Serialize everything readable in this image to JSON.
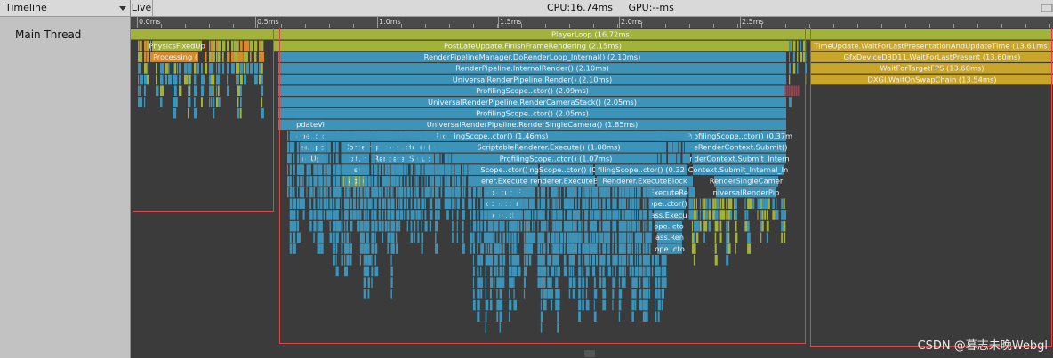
{
  "left_panel": {
    "dropdown_label": "Timeline",
    "thread_name": "Main Thread"
  },
  "toolbar": {
    "live_label": "Live",
    "cpu": "CPU:16.74ms",
    "gpu": "GPU:--ms"
  },
  "ruler": {
    "ticks": [
      "0.0ms",
      "0.5ms",
      "1.0ms",
      "1.5ms",
      "2.0ms",
      "2.5ms"
    ]
  },
  "samples": [
    {
      "label": "PlayerLoop (16.72ms)",
      "color": "#a3b33a"
    },
    {
      "label": "PostLateUpdate.FinishFrameRendering (2.15ms)",
      "color": "#a3b33a"
    },
    {
      "label": "RenderPipelineManager.DoRenderLoop_Internal() (2.10ms)",
      "color": "#3e93b8"
    },
    {
      "label": "RenderPipeline.InternalRender() (2.10ms)",
      "color": "#3e93b8"
    },
    {
      "label": "UniversalRenderPipeline.Render() (2.10ms)",
      "color": "#3e93b8"
    },
    {
      "label": "ProfilingScope..ctor() (2.09ms)",
      "color": "#3e93b8"
    },
    {
      "label": "UniversalRenderPipeline.RenderCameraStack() (2.05ms)",
      "color": "#3e93b8"
    },
    {
      "label": "ProfilingScope..ctor() (2.05ms)",
      "color": "#3e93b8"
    },
    {
      "label": "UniversalRenderPipeline.RenderSingleCamera() (1.85ms)",
      "color": "#3e93b8"
    },
    {
      "label": "ProfilingScope..ctor() (1.46ms)",
      "color": "#3e93b8"
    },
    {
      "label": "ScriptableRenderer.Execute() (1.08ms)",
      "color": "#3e93b8"
    },
    {
      "label": "ProfilingScope..ctor() (1.07ms)",
      "color": "#3e93b8"
    },
    {
      "label": "TimeUpdate.WaitForLastPresentationAndUpdateTime (13.61ms)",
      "color": "#c9a52a"
    },
    {
      "label": "GfxDeviceD3D11.WaitForLastPresent (13.60ms)",
      "color": "#c9a52a"
    },
    {
      "label": "WaitForTargetFPS (13.60ms)",
      "color": "#c9a52a"
    },
    {
      "label": "DXGI.WaitOnSwapChain (13.54ms)",
      "color": "#c9a52a"
    },
    {
      "label": "PhysicsFixedUp",
      "color": "#a3b33a"
    },
    {
      "label": "Processing (",
      "color": "#d88a2a"
    },
    {
      "label": "ProfilingScope..ctor() (0.37m",
      "color": "#3e93b8"
    },
    {
      "label": "leRenderContext.Submit()",
      "color": "#3e93b8"
    },
    {
      "label": "nderContext.Submit_Intern",
      "color": "#3e93b8"
    },
    {
      "label": "Context.Submit_Internal_In",
      "color": "#3e93b8"
    },
    {
      "label": "RenderSingleCamer",
      "color": "#3e93b8"
    },
    {
      "label": "niversalRenderPip",
      "color": "#3e93b8"
    },
    {
      "label": "ExecuteRe",
      "color": "#3e93b8"
    },
    {
      "label": "ope..ctor()",
      "color": "#3e93b8"
    },
    {
      "label": "ass.Execu",
      "color": "#3e93b8"
    },
    {
      "label": "ope..cto",
      "color": "#3e93b8"
    },
    {
      "label": "ass.Ren",
      "color": "#3e93b8"
    },
    {
      "label": "ope..cto",
      "color": "#3e93b8"
    },
    {
      "label": "pdateVi",
      "color": "#3e93b8"
    },
    {
      "label": "ope..cto",
      "color": "#3e93b8"
    },
    {
      "label": "er.Upc",
      "color": "#3e93b8"
    },
    {
      "label": "Conte",
      "color": "#3e93b8"
    },
    {
      "label": "ngScope..ctor() (0",
      "color": "#3e93b8"
    },
    {
      "label": "ler.Upc",
      "color": "#3e93b8"
    },
    {
      "label": "text.In",
      "color": "#3e93b8"
    },
    {
      "label": "Renderer.Setup(",
      "color": "#3e93b8"
    },
    {
      "label": "Intern",
      "color": "#3e93b8"
    },
    {
      "label": "Scope..ctor()",
      "color": "#3e93b8"
    },
    {
      "label": "ngScope..ctor() (0.2",
      "color": "#3e93b8"
    },
    {
      "label": "filingScope..ctor() (0.32",
      "color": "#3e93b8"
    },
    {
      "label": "eable",
      "color": "#a3b33a"
    },
    {
      "label": "erer.Execute",
      "color": "#3e93b8"
    },
    {
      "label": "renderer.ExecuteBlo",
      "color": "#3e93b8"
    },
    {
      "label": "Renderer.ExecuteBlock",
      "color": "#3e93b8"
    },
    {
      "label": "executeF",
      "color": "#3e93b8"
    },
    {
      "label": "ope..ctor",
      "color": "#3e93b8"
    },
    {
      "label": "ope..cto",
      "color": "#3e93b8"
    }
  ],
  "colors": {
    "green": "#a3b33a",
    "blue": "#3e93b8",
    "gold": "#c9a52a",
    "orange": "#d88a2a",
    "selection": "#d84747"
  },
  "watermark": "CSDN @暮志未晚Webgl"
}
